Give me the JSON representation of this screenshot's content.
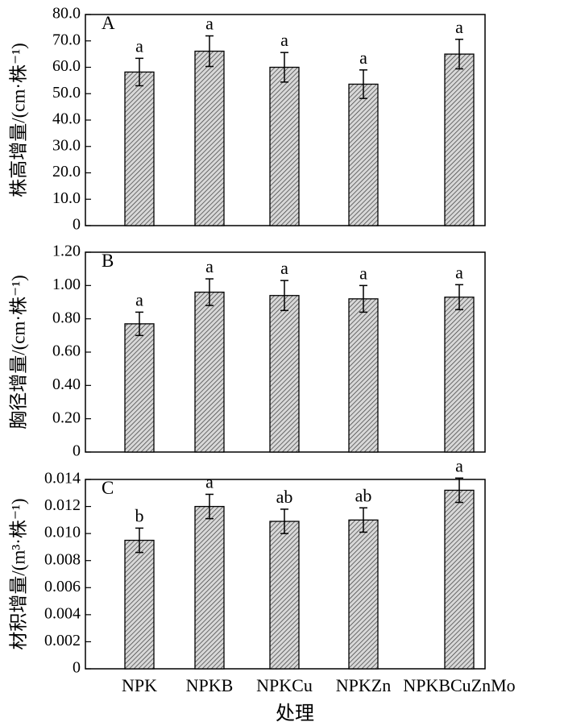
{
  "chart_data": [
    {
      "type": "bar",
      "panel": "A",
      "categories": [
        "NPK",
        "NPKB",
        "NPKCu",
        "NPKZn",
        "NPKBCuZnMo"
      ],
      "values": [
        58.2,
        66.1,
        60.0,
        53.6,
        65.0
      ],
      "errors": [
        5.2,
        5.8,
        5.6,
        5.4,
        5.6
      ],
      "significance": [
        "a",
        "a",
        "a",
        "a",
        "a"
      ],
      "ylabel": "株高增量/(cm·株⁻¹)",
      "ylim": [
        0,
        80
      ],
      "yticks": [
        0,
        10,
        20,
        30,
        40,
        50,
        60,
        70,
        80
      ],
      "ytick_labels": [
        "0",
        "10.0",
        "20.0",
        "30.0",
        "40.0",
        "50.0",
        "60.0",
        "70.0",
        "80.0"
      ]
    },
    {
      "type": "bar",
      "panel": "B",
      "categories": [
        "NPK",
        "NPKB",
        "NPKCu",
        "NPKZn",
        "NPKBCuZnMo"
      ],
      "values": [
        0.77,
        0.96,
        0.94,
        0.92,
        0.93
      ],
      "errors": [
        0.07,
        0.08,
        0.09,
        0.08,
        0.075
      ],
      "significance": [
        "a",
        "a",
        "a",
        "a",
        "a"
      ],
      "ylabel": "胸径增量/(cm·株⁻¹)",
      "ylim": [
        0,
        1.2
      ],
      "yticks": [
        0,
        0.2,
        0.4,
        0.6,
        0.8,
        1.0,
        1.2
      ],
      "ytick_labels": [
        "0",
        "0.20",
        "0.40",
        "0.60",
        "0.80",
        "1.00",
        "1.20"
      ]
    },
    {
      "type": "bar",
      "panel": "C",
      "categories": [
        "NPK",
        "NPKB",
        "NPKCu",
        "NPKZn",
        "NPKBCuZnMo"
      ],
      "values": [
        0.0095,
        0.012,
        0.0109,
        0.011,
        0.0132
      ],
      "errors": [
        0.0009,
        0.0009,
        0.0009,
        0.0009,
        0.0009
      ],
      "significance": [
        "b",
        "a",
        "ab",
        "ab",
        "a"
      ],
      "ylabel": "材积增量/(m³·株⁻¹)",
      "ylim": [
        0,
        0.014
      ],
      "yticks": [
        0,
        0.002,
        0.004,
        0.006,
        0.008,
        0.01,
        0.012,
        0.014
      ],
      "ytick_labels": [
        "0",
        "0.002",
        "0.004",
        "0.006",
        "0.008",
        "0.010",
        "0.012",
        "0.014"
      ]
    }
  ],
  "xlabel": "处理",
  "colors": {
    "axis": "#000000",
    "bar_fill": "#d8d8d8",
    "hatch": "#3a3a3a"
  }
}
